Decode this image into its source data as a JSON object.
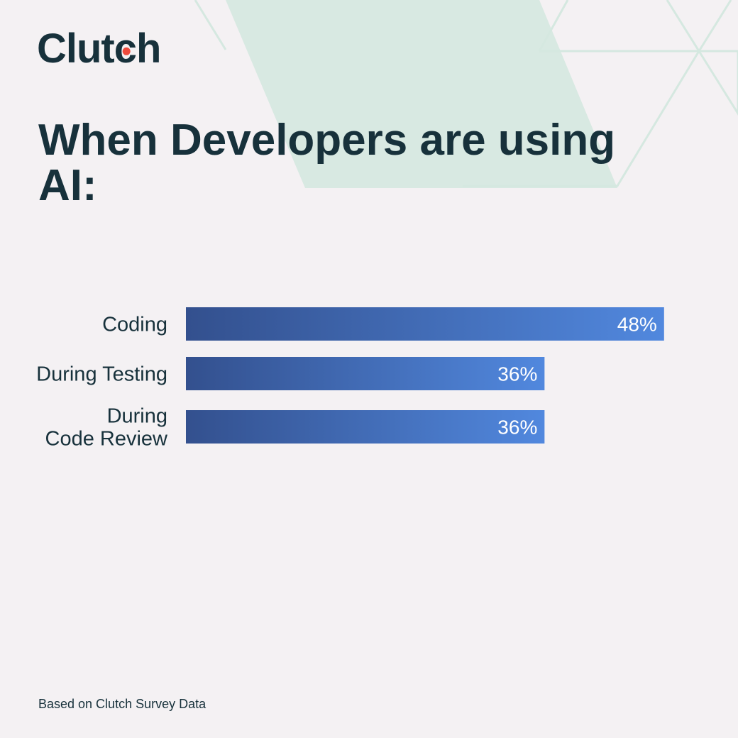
{
  "brand": {
    "name": "Clutch",
    "dot_color": "#ef4a3c",
    "text_color": "#17313b"
  },
  "title": "When Developers are using AI:",
  "footnote": "Based on Clutch Survey Data",
  "colors": {
    "background": "#f4f1f3",
    "hex_fill": "#d8e9e2",
    "bar_start": "#33508e",
    "bar_end": "#5188de"
  },
  "chart_data": {
    "type": "bar",
    "orientation": "horizontal",
    "categories": [
      [
        "Coding"
      ],
      [
        "During Testing"
      ],
      [
        "During",
        "Code Review"
      ]
    ],
    "values": [
      48,
      36,
      36
    ],
    "value_labels": [
      "48%",
      "36%",
      "36%"
    ],
    "unit": "%",
    "xlim": [
      0,
      53
    ],
    "title": "",
    "xlabel": "",
    "ylabel": "",
    "grid": false,
    "legend": "none"
  }
}
